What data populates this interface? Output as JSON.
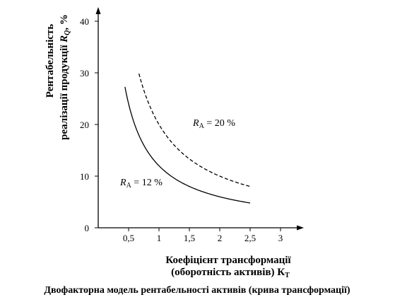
{
  "chart_data": {
    "type": "line",
    "caption": "Двофакторна модель рентабельності активів (крива трансформації)",
    "ylabel_line1": "Рентабельність",
    "ylabel_line2_prefix": "реалізації продукції ",
    "ylabel_line2_var": "R",
    "ylabel_line2_sub": "Q",
    "ylabel_line2_suffix": ", %",
    "xlabel_line1": "Коефіцієнт трансформації",
    "xlabel_line2_prefix": "(оборотність активів) К",
    "xlabel_line2_sub": "Т",
    "xlim": [
      0,
      3.3
    ],
    "ylim": [
      0,
      42
    ],
    "x_ticks": [
      0.5,
      1,
      1.5,
      2,
      2.5,
      3
    ],
    "x_tick_labels": [
      "0,5",
      "1",
      "1,5",
      "2",
      "2,5",
      "3"
    ],
    "y_ticks": [
      0,
      10,
      20,
      30,
      40
    ],
    "y_tick_labels": [
      "0",
      "10",
      "20",
      "30",
      "40"
    ],
    "series": [
      {
        "name_var": "R",
        "name_sub": "A",
        "name_value": " = 12 %",
        "style": "solid",
        "ra": 12,
        "x_start": 0.44,
        "x_end": 2.5
      },
      {
        "name_var": "R",
        "name_sub": "A",
        "name_value": " = 20 %",
        "style": "dashed",
        "ra": 20,
        "x_start": 0.67,
        "x_end": 2.5
      }
    ]
  }
}
